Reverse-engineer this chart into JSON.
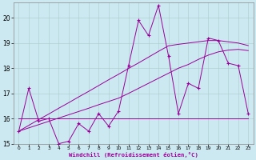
{
  "xlabel": "Windchill (Refroidissement éolien,°C)",
  "x": [
    0,
    1,
    2,
    3,
    4,
    5,
    6,
    7,
    8,
    9,
    10,
    11,
    12,
    13,
    14,
    15,
    16,
    17,
    18,
    19,
    20,
    21,
    22,
    23
  ],
  "y_main": [
    15.5,
    17.2,
    15.9,
    16.0,
    15.0,
    15.1,
    15.8,
    15.5,
    16.2,
    15.7,
    16.3,
    18.1,
    19.9,
    19.3,
    20.5,
    18.5,
    16.2,
    17.4,
    17.2,
    19.2,
    19.1,
    18.2,
    18.1,
    16.2
  ],
  "y_flat": [
    16.0,
    16.0,
    16.0,
    16.0,
    16.0,
    16.0,
    16.0,
    16.0,
    16.0,
    16.0,
    16.0,
    16.0,
    16.0,
    16.0,
    16.0,
    16.0,
    16.0,
    16.0,
    16.0,
    16.0,
    16.0,
    16.0,
    16.0,
    16.0
  ],
  "y_trend1": [
    15.5,
    15.73,
    15.96,
    16.18,
    16.41,
    16.63,
    16.86,
    17.08,
    17.31,
    17.54,
    17.76,
    17.99,
    18.21,
    18.44,
    18.67,
    18.89,
    18.95,
    19.0,
    19.05,
    19.1,
    19.1,
    19.05,
    19.0,
    18.9
  ],
  "y_trend2": [
    15.5,
    15.63,
    15.76,
    15.89,
    16.02,
    16.15,
    16.28,
    16.41,
    16.55,
    16.68,
    16.81,
    17.0,
    17.2,
    17.4,
    17.6,
    17.8,
    18.0,
    18.15,
    18.35,
    18.52,
    18.65,
    18.72,
    18.75,
    18.7
  ],
  "ylim": [
    15.0,
    20.6
  ],
  "yticks": [
    15,
    16,
    17,
    18,
    19,
    20
  ],
  "bg_color": "#cce8f0",
  "line_color": "#990099",
  "grid_color": "#aacccc"
}
